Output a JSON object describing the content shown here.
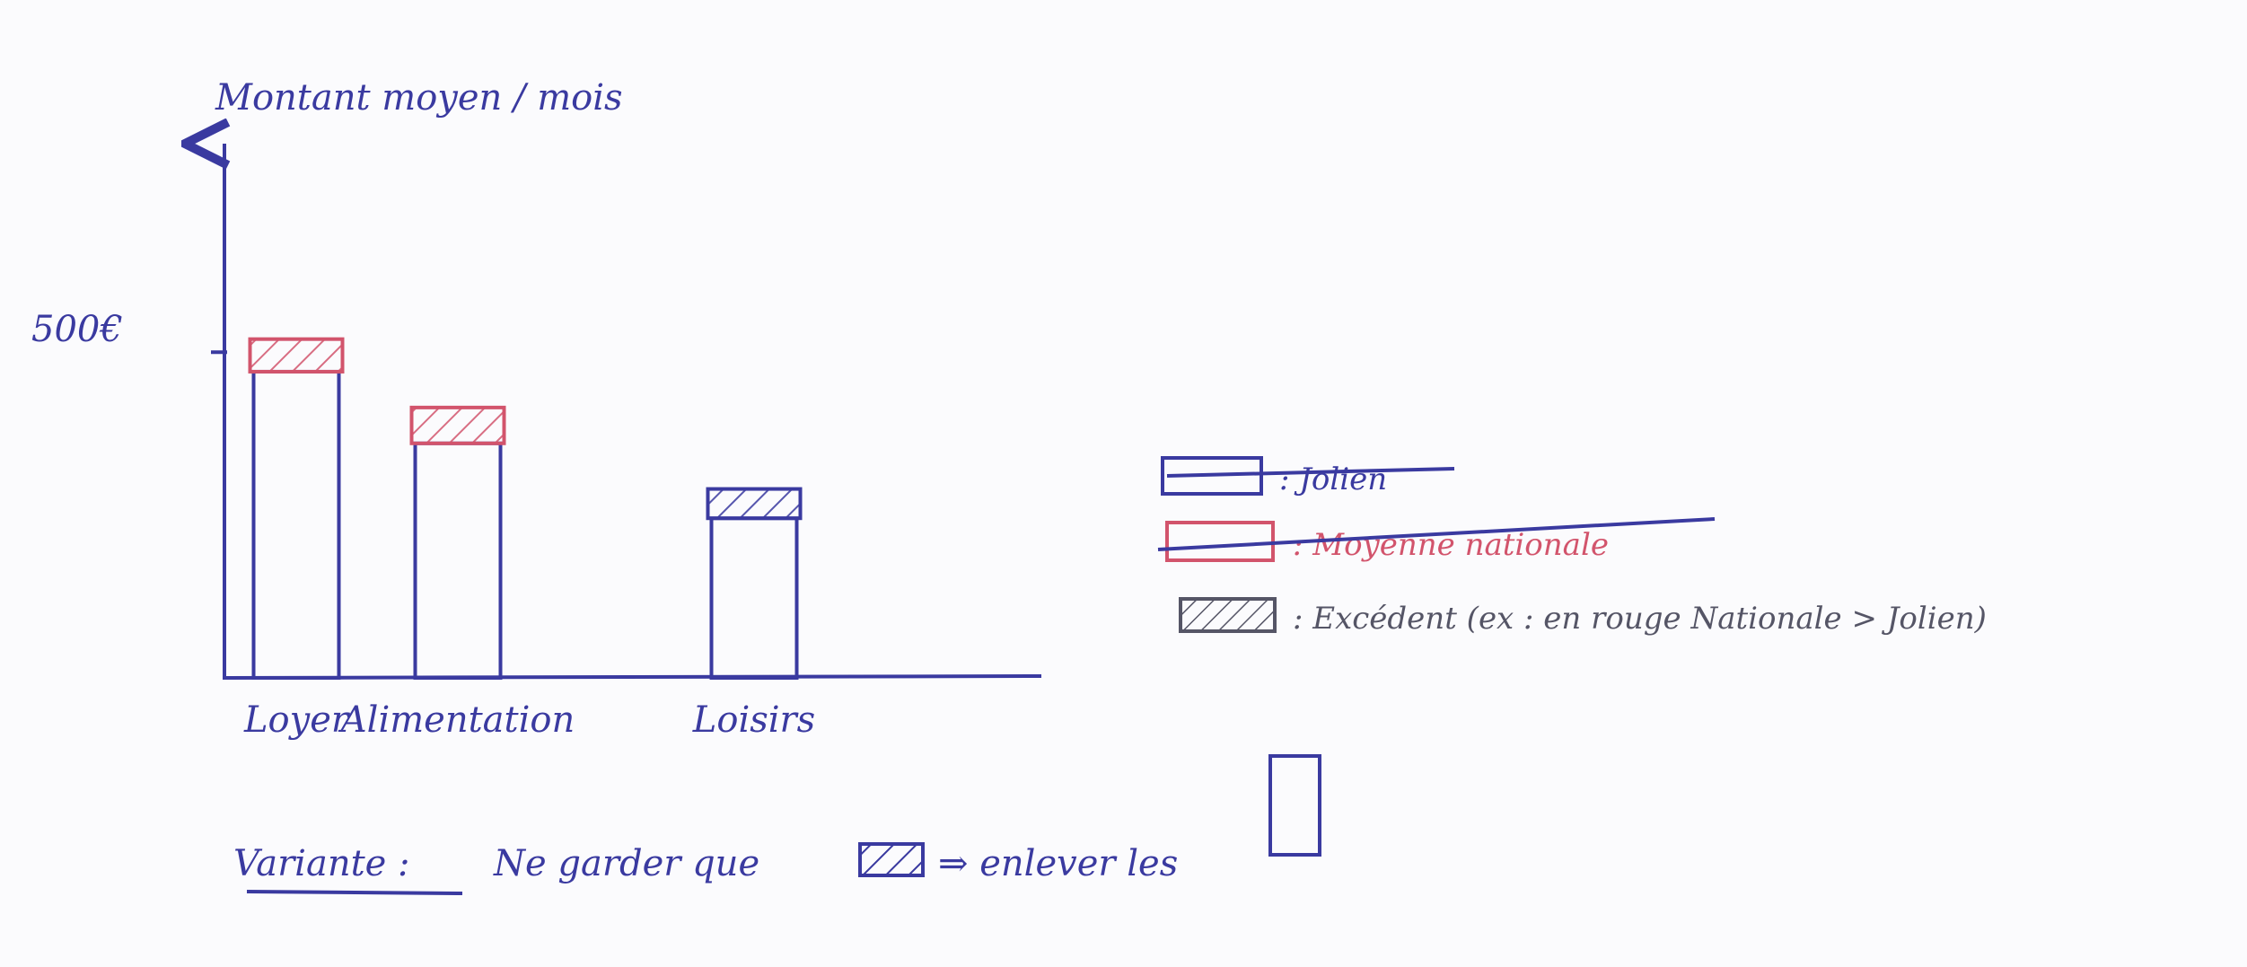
{
  "chart_data": {
    "type": "bar",
    "ylabel": "Montant moyen / mois",
    "y_tick_label": "500€",
    "y_tick_value": 500,
    "ylim": [
      0,
      820
    ],
    "categories": [
      "Loyer",
      "Alimentation",
      "Loisirs"
    ],
    "series": [
      {
        "name": "Jolien",
        "values": [
          470,
          360,
          290
        ]
      },
      {
        "name": "Moyenne nationale",
        "values": [
          520,
          415,
          245
        ]
      }
    ],
    "excess_color_by_category": [
      "#d2546c",
      "#d2546c",
      "#3a3aa0"
    ]
  },
  "legend": {
    "items": [
      {
        "label": ": Jolien",
        "struck": true
      },
      {
        "label": ": Moyenne nationale",
        "struck": true
      },
      {
        "label": ": Excédent (ex : en rouge Nationale > Jolien)",
        "struck": false
      }
    ]
  },
  "footnote": {
    "prefix": "Variante :",
    "text_1": "Ne garder que",
    "text_2": "⇒ enlever les"
  },
  "colors": {
    "ink_blue": "#3a3aa0",
    "ink_red": "#d2546c",
    "ink_gray": "#555566",
    "paper": "#fbfbfd"
  }
}
